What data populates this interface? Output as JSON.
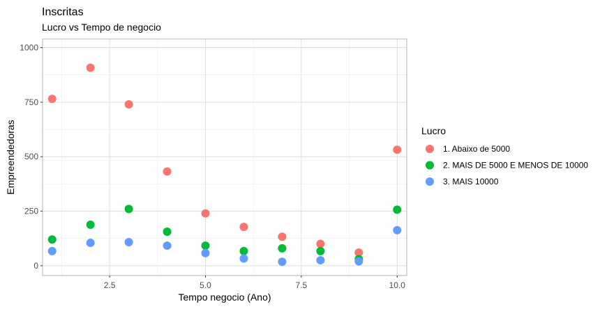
{
  "chart_data": {
    "type": "scatter",
    "title": "Inscritas",
    "subtitle": "Lucro vs Tempo de negocio",
    "xlabel": "Tempo negocio (Ano)",
    "ylabel": "Empreendedoras",
    "xlim": [
      0.75,
      10.25
    ],
    "ylim": [
      -45,
      1040
    ],
    "xticks": [
      2.5,
      5.0,
      7.5,
      10.0
    ],
    "xtick_labels": [
      "2.5",
      "5.0",
      "7.5",
      "10.0"
    ],
    "yticks": [
      0,
      250,
      500,
      750,
      1000
    ],
    "ytick_labels": [
      "0",
      "250",
      "500",
      "750",
      "1000"
    ],
    "grid": true,
    "legend": {
      "title": "Lucro",
      "position": "right"
    },
    "series": [
      {
        "name": "1. Abaixo de 5000",
        "color": "#F8766D",
        "x": [
          1,
          2,
          3,
          4,
          5,
          6,
          7,
          8,
          9,
          10
        ],
        "y": [
          765,
          908,
          740,
          432,
          240,
          178,
          133,
          100,
          60,
          532
        ]
      },
      {
        "name": "2. MAIS DE 5000 E MENOS DE 10000",
        "color": "#00BA38",
        "x": [
          1,
          2,
          3,
          4,
          5,
          6,
          7,
          8,
          9,
          10
        ],
        "y": [
          120,
          188,
          260,
          156,
          92,
          67,
          80,
          67,
          30,
          257
        ]
      },
      {
        "name": "3. MAIS 10000",
        "color": "#619CFF",
        "x": [
          1,
          2,
          3,
          4,
          5,
          6,
          7,
          8,
          9,
          10
        ],
        "y": [
          67,
          105,
          108,
          92,
          58,
          33,
          18,
          25,
          20,
          163
        ]
      }
    ]
  }
}
